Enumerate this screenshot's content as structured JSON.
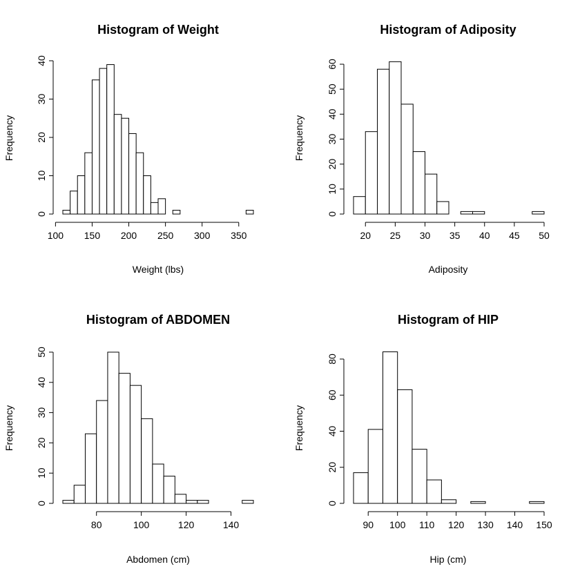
{
  "chart_data": [
    {
      "type": "bar",
      "title": "Histogram of Weight",
      "xlabel": "Weight (lbs)",
      "ylabel": "Frequency",
      "bin_width": 10,
      "bin_starts": [
        110,
        120,
        130,
        140,
        150,
        160,
        170,
        180,
        190,
        200,
        210,
        220,
        230,
        240,
        250,
        260,
        270,
        280,
        290,
        300,
        310,
        320,
        330,
        340,
        350,
        360
      ],
      "values": [
        1,
        6,
        10,
        16,
        35,
        38,
        39,
        26,
        25,
        21,
        16,
        10,
        3,
        4,
        0,
        1,
        0,
        0,
        0,
        0,
        0,
        0,
        0,
        0,
        0,
        1
      ],
      "x_ticks": [
        100,
        150,
        200,
        250,
        300,
        350
      ],
      "y_ticks": [
        0,
        10,
        20,
        30,
        40
      ],
      "xlim": [
        110,
        370
      ],
      "ylim": [
        0,
        40
      ]
    },
    {
      "type": "bar",
      "title": "Histogram of Adiposity",
      "xlabel": "Adiposity",
      "ylabel": "Frequency",
      "bin_width": 2,
      "bin_starts": [
        18,
        20,
        22,
        24,
        26,
        28,
        30,
        32,
        34,
        36,
        38,
        40,
        42,
        44,
        46,
        48
      ],
      "values": [
        7,
        33,
        58,
        61,
        44,
        25,
        16,
        5,
        0,
        1,
        1,
        0,
        0,
        0,
        0,
        1
      ],
      "x_ticks": [
        20,
        25,
        30,
        35,
        40,
        45,
        50
      ],
      "y_ticks": [
        0,
        10,
        20,
        30,
        40,
        50,
        60
      ],
      "xlim": [
        18,
        50
      ],
      "ylim": [
        0,
        60
      ]
    },
    {
      "type": "bar",
      "title": "Histogram of ABDOMEN",
      "xlabel": "Abdomen (cm)",
      "ylabel": "Frequency",
      "bin_width": 5,
      "bin_starts": [
        65,
        70,
        75,
        80,
        85,
        90,
        95,
        100,
        105,
        110,
        115,
        120,
        125,
        130,
        135,
        140,
        145
      ],
      "values": [
        1,
        6,
        23,
        34,
        50,
        43,
        39,
        28,
        13,
        9,
        3,
        1,
        1,
        0,
        0,
        0,
        1
      ],
      "x_ticks": [
        80,
        100,
        120,
        140
      ],
      "y_ticks": [
        0,
        10,
        20,
        30,
        40,
        50
      ],
      "xlim": [
        65,
        150
      ],
      "ylim": [
        0,
        50
      ]
    },
    {
      "type": "bar",
      "title": "Histogram of HIP",
      "xlabel": "Hip (cm)",
      "ylabel": "Frequency",
      "bin_width": 5,
      "bin_starts": [
        85,
        90,
        95,
        100,
        105,
        110,
        115,
        120,
        125,
        130,
        135,
        140,
        145
      ],
      "values": [
        17,
        41,
        84,
        63,
        30,
        13,
        2,
        0,
        1,
        0,
        0,
        0,
        1
      ],
      "x_ticks": [
        90,
        100,
        110,
        120,
        130,
        140,
        150
      ],
      "y_ticks": [
        0,
        20,
        40,
        60,
        80
      ],
      "xlim": [
        85,
        150
      ],
      "ylim": [
        0,
        80
      ]
    }
  ]
}
